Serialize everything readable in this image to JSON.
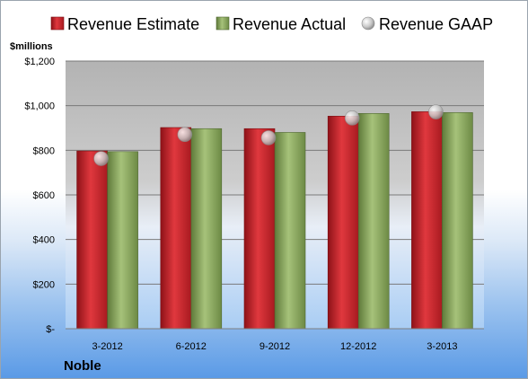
{
  "legend": {
    "estimate": "Revenue Estimate",
    "actual": "Revenue Actual",
    "gaap": "Revenue GAAP"
  },
  "unit_label": "$millions",
  "company": "Noble",
  "colors": {
    "estimate": "#c8242b",
    "actual": "#8aa55a",
    "gaap": "#c8c8c8"
  },
  "chart_data": {
    "type": "bar",
    "categories": [
      "3-2012",
      "6-2012",
      "9-2012",
      "12-2012",
      "3-2013"
    ],
    "series": [
      {
        "name": "Revenue Estimate",
        "values": [
          797,
          902,
          897,
          953,
          973
        ]
      },
      {
        "name": "Revenue Actual",
        "values": [
          794,
          897,
          880,
          965,
          969
        ]
      },
      {
        "name": "Revenue GAAP",
        "values": [
          763,
          871,
          856,
          945,
          972
        ]
      }
    ],
    "ylim": [
      0,
      1200
    ],
    "yticks": [
      0,
      200,
      400,
      600,
      800,
      1000,
      1200
    ],
    "ytick_labels": [
      "$-",
      "$200",
      "$400",
      "$600",
      "$800",
      "$1,000",
      "$1,200"
    ],
    "grid": true,
    "legend_position": "top"
  }
}
